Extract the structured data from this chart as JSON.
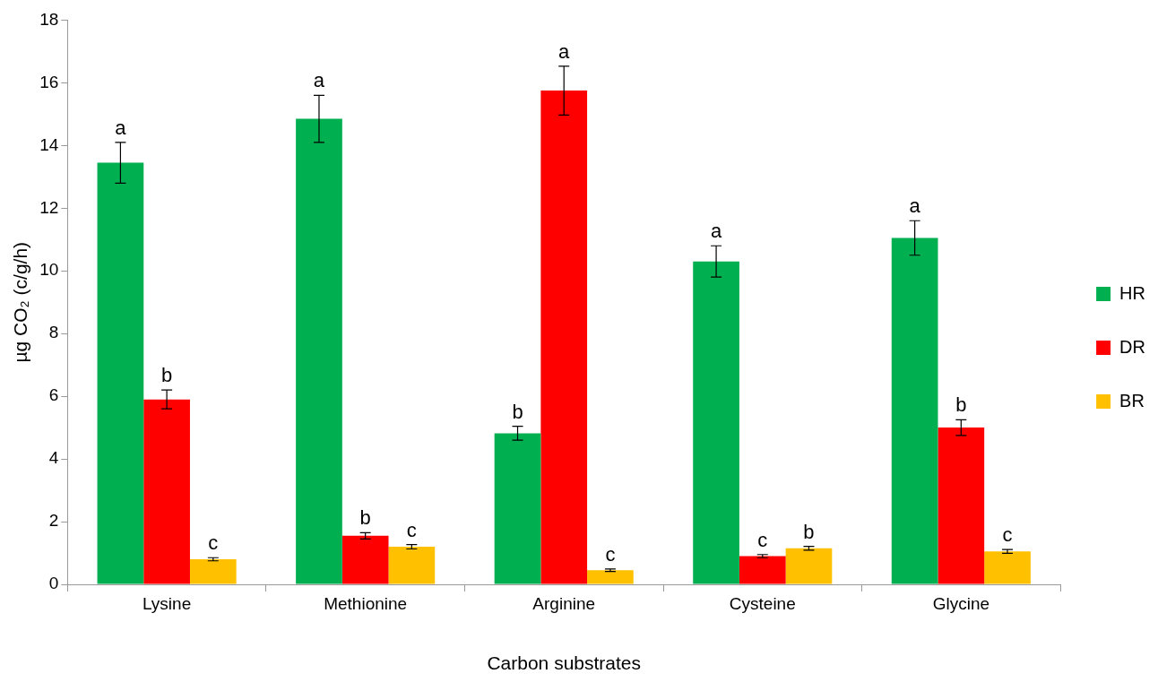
{
  "chart_data": {
    "type": "bar",
    "xlabel": "Carbon substrates",
    "ylabel": "µg CO₂ (c/g/h)",
    "categories": [
      "Lysine",
      "Methionine",
      "Arginine",
      "Cysteine",
      "Glycine"
    ],
    "series": [
      {
        "name": "HR",
        "color": "#00b050",
        "values": [
          13.45,
          14.85,
          4.82,
          10.3,
          11.05
        ],
        "errors": [
          0.65,
          0.75,
          0.22,
          0.5,
          0.55
        ],
        "value_labels": [
          "a",
          "a",
          "b",
          "a",
          "a"
        ]
      },
      {
        "name": "DR",
        "color": "#ff0000",
        "values": [
          5.9,
          1.55,
          15.75,
          0.9,
          5.0
        ],
        "errors": [
          0.3,
          0.1,
          0.78,
          0.05,
          0.25
        ],
        "value_labels": [
          "b",
          "b",
          "a",
          "c",
          "b"
        ]
      },
      {
        "name": "BR",
        "color": "#ffc000",
        "values": [
          0.8,
          1.2,
          0.45,
          1.15,
          1.05
        ],
        "errors": [
          0.05,
          0.07,
          0.04,
          0.06,
          0.06
        ],
        "value_labels": [
          "c",
          "c",
          "c",
          "b",
          "c"
        ]
      }
    ],
    "ylim": [
      0,
      18
    ],
    "yticks": [
      0,
      2,
      4,
      6,
      8,
      10,
      12,
      14,
      16,
      18
    ],
    "grid": false,
    "legend": "right"
  }
}
